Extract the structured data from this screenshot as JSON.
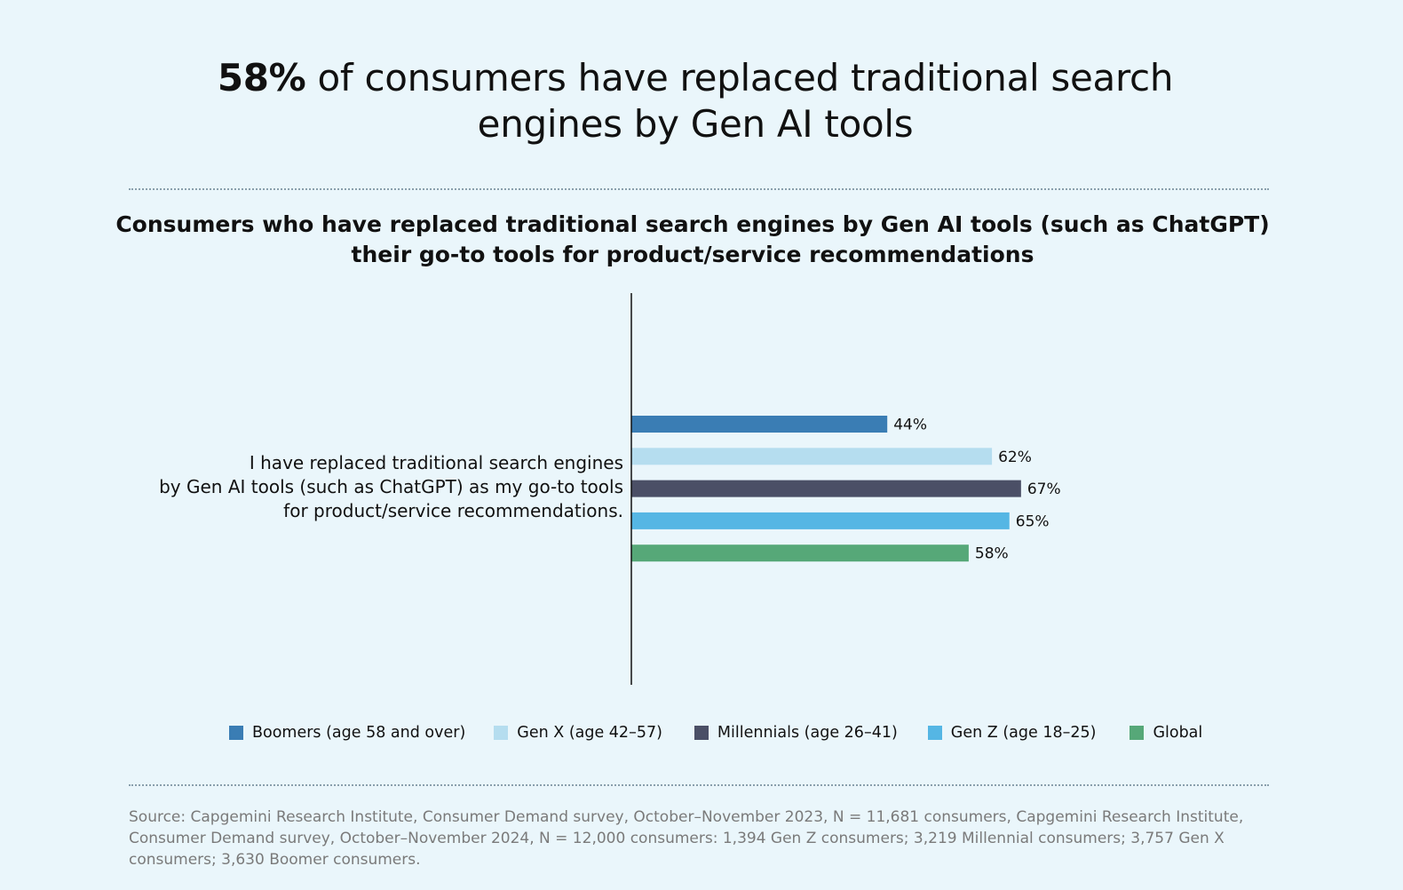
{
  "headline": {
    "bold": "58%",
    "rest": "of consumers have replaced traditional search",
    "line2": "engines by Gen AI tools"
  },
  "subtitle": {
    "line1": "Consumers who have replaced traditional search engines by Gen AI tools (such as ChatGPT)",
    "line2": "their go-to tools for product/service recommendations"
  },
  "chart_data": {
    "type": "bar",
    "orientation": "horizontal",
    "categories": [
      "I have replaced traditional search engines by Gen AI tools (such as ChatGPT) as my go-to tools for product/service recommendations."
    ],
    "category_label_lines": [
      "I have replaced traditional search engines",
      "by Gen AI tools (such as ChatGPT) as my go-to tools",
      "for product/service recommendations."
    ],
    "series": [
      {
        "name": "Boomers (age 58 and over)",
        "values": [
          44
        ],
        "label": "44%",
        "color": "#3a7db4"
      },
      {
        "name": "Gen X (age 42–57)",
        "values": [
          62
        ],
        "label": "62%",
        "color": "#b5ddef"
      },
      {
        "name": "Millennials (age 26–41)",
        "values": [
          67
        ],
        "label": "67%",
        "color": "#4b4f66"
      },
      {
        "name": "Gen Z (age 18–25)",
        "values": [
          65
        ],
        "label": "65%",
        "color": "#55b6e4"
      },
      {
        "name": "Global",
        "values": [
          58
        ],
        "label": "58%",
        "color": "#56a878"
      }
    ],
    "xlim": [
      0,
      100
    ],
    "grid": false,
    "legend_position": "bottom"
  },
  "source": "Source: Capgemini Research Institute, Consumer Demand survey, October–November 2023, N = 11,681 consumers, Capgemini Research Institute, Consumer Demand survey, October–November 2024, N = 12,000 consumers: 1,394 Gen Z consumers; 3,219 Millennial consumers; 3,757 Gen X consumers; 3,630 Boomer consumers."
}
